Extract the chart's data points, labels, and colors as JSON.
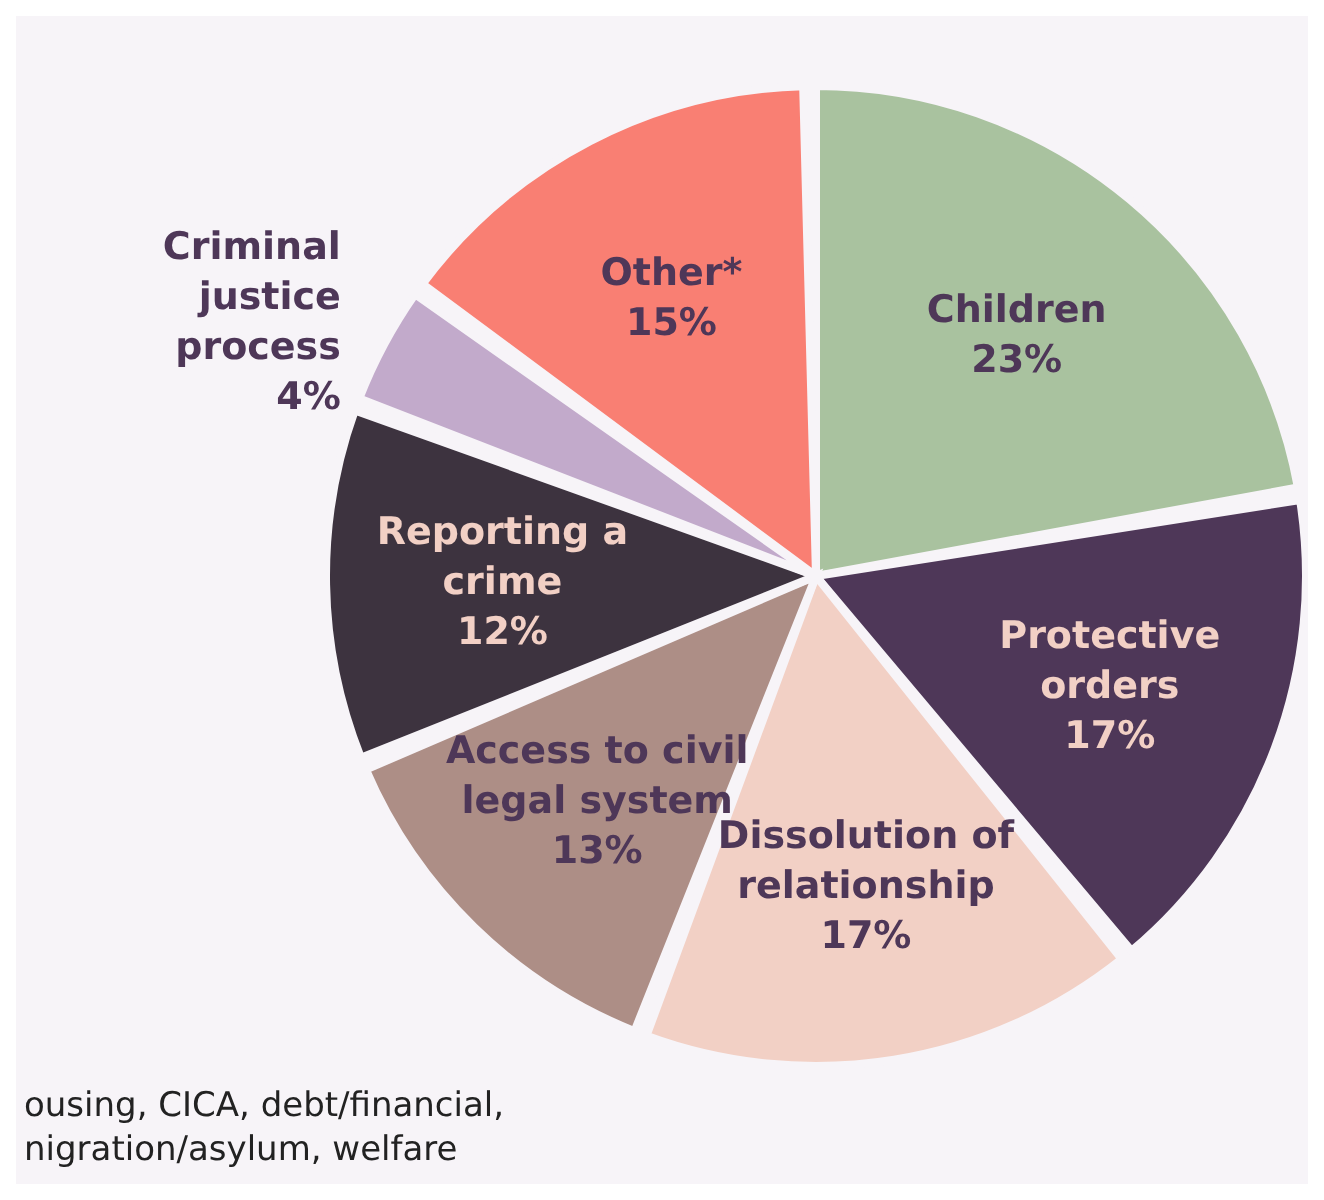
{
  "chart_data": {
    "type": "pie",
    "categories": [
      "Children",
      "Protective orders",
      "Dissolution of relationship",
      "Access to civil legal system",
      "Reporting a crime",
      "Criminal justice process",
      "Other*"
    ],
    "values": [
      23,
      17,
      17,
      13,
      12,
      4,
      15
    ],
    "value_labels": [
      "23%",
      "17%",
      "17%",
      "13%",
      "12%",
      "4%",
      "15%"
    ],
    "colors": [
      "#a9c29f",
      "#4e3758",
      "#f2d0c5",
      "#ad8e86",
      "#3d333f",
      "#c2aacb",
      "#f97f73"
    ],
    "legend": false,
    "annotations": [
      "ousing, CICA, debt/financial,",
      "nigration/asylum, welfare"
    ]
  }
}
